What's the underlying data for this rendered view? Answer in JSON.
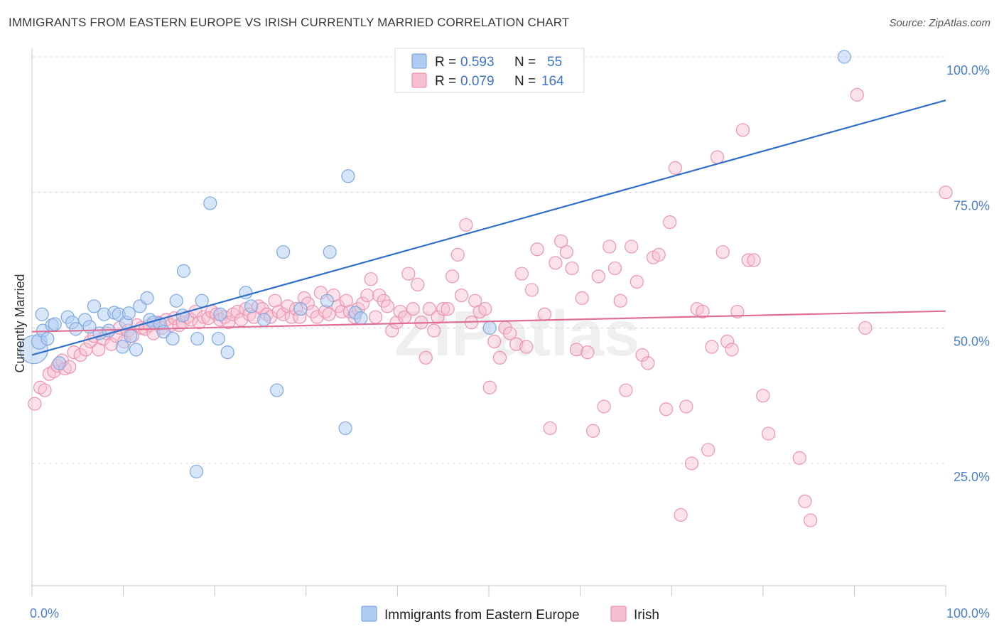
{
  "title": "IMMIGRANTS FROM EASTERN EUROPE VS IRISH CURRENTLY MARRIED CORRELATION CHART",
  "source": "Source: ZipAtlas.com",
  "watermark": "ZIPatlas",
  "colors": {
    "blue_fill": "#aecbf1",
    "blue_stroke": "#7fa8e0",
    "blue_line": "#2f6fcc",
    "pink_fill": "#f6bfd1",
    "pink_stroke": "#ec93b1",
    "pink_line": "#e06f98",
    "tick_text": "#4a7fd0",
    "grid": "#d8d8d8"
  },
  "legend": {
    "rows": [
      {
        "r_label": "R = ",
        "r_value": "0.593",
        "n_label": "N = ",
        "n_value": "55"
      },
      {
        "r_label": "R = ",
        "r_value": "0.079",
        "n_label": "N = ",
        "n_value": "164"
      }
    ]
  },
  "bottom_legend": [
    "Immigrants from Eastern Europe",
    "Irish"
  ],
  "chart_data": {
    "type": "scatter",
    "xlabel": "",
    "ylabel": "Currently Married",
    "xlim": [
      0,
      100
    ],
    "ylim": [
      0,
      105
    ],
    "x_tick_labels": [
      "0.0%",
      "100.0%"
    ],
    "y_ticks": [
      25,
      50,
      75,
      100
    ],
    "y_tick_labels": [
      "25.0%",
      "50.0%",
      "75.0%",
      "100.0%"
    ],
    "grid": true,
    "legend_position": "top-center",
    "series": [
      {
        "name": "Immigrants from Eastern Europe",
        "color": "#aecbf1",
        "trend": {
          "x": [
            0,
            100
          ],
          "y": [
            45.0,
            92.0
          ]
        },
        "points": [
          [
            0.2,
            46.0,
            2.2
          ],
          [
            0.8,
            47.5,
            1.2
          ],
          [
            1.2,
            49.5,
            1.0
          ],
          [
            1.7,
            48.0,
            1.0
          ],
          [
            2.2,
            50.5,
            1.0
          ],
          [
            3.0,
            43.5,
            1.0
          ],
          [
            3.9,
            52.0,
            1.0
          ],
          [
            4.4,
            51.0,
            1.0
          ],
          [
            4.8,
            49.8,
            1.0
          ],
          [
            5.8,
            51.5,
            1.0
          ],
          [
            6.3,
            50.2,
            1.0
          ],
          [
            6.8,
            54.0,
            1.0
          ],
          [
            7.4,
            49.0,
            1.0
          ],
          [
            7.9,
            52.5,
            1.0
          ],
          [
            8.4,
            49.5,
            1.0
          ],
          [
            9.0,
            52.8,
            1.0
          ],
          [
            9.5,
            52.5,
            1.0
          ],
          [
            9.9,
            46.5,
            1.0
          ],
          [
            10.3,
            51.0,
            1.0
          ],
          [
            10.8,
            48.5,
            1.0
          ],
          [
            11.4,
            46.0,
            1.0
          ],
          [
            11.8,
            54.0,
            1.0
          ],
          [
            12.6,
            55.5,
            1.0
          ],
          [
            12.9,
            51.5,
            1.0
          ],
          [
            13.3,
            51.0,
            1.0
          ],
          [
            14.0,
            50.8,
            1.0
          ],
          [
            14.4,
            49.3,
            1.0
          ],
          [
            15.4,
            48.0,
            1.0
          ],
          [
            15.8,
            55.0,
            1.0
          ],
          [
            16.5,
            52.3,
            1.0
          ],
          [
            16.6,
            60.5,
            1.0
          ],
          [
            18.0,
            23.5,
            1.0
          ],
          [
            18.1,
            48.0,
            1.0
          ],
          [
            18.6,
            55.0,
            1.0
          ],
          [
            19.5,
            73.0,
            1.0
          ],
          [
            20.4,
            48.0,
            1.0
          ],
          [
            20.6,
            52.5,
            1.0
          ],
          [
            21.4,
            45.5,
            1.0
          ],
          [
            23.4,
            56.5,
            1.0
          ],
          [
            24.0,
            54.0,
            1.0
          ],
          [
            25.4,
            51.5,
            1.0
          ],
          [
            26.8,
            38.5,
            1.0
          ],
          [
            27.5,
            64.0,
            1.0
          ],
          [
            29.4,
            53.5,
            1.0
          ],
          [
            32.3,
            55.0,
            1.0
          ],
          [
            32.6,
            64.0,
            1.0
          ],
          [
            34.3,
            31.5,
            1.0
          ],
          [
            34.6,
            78.0,
            1.0
          ],
          [
            35.4,
            52.8,
            1.0
          ],
          [
            50.1,
            50.0,
            1.0
          ],
          [
            1.1,
            52.5,
            1.0
          ],
          [
            2.5,
            50.7,
            1.0
          ],
          [
            10.6,
            52.7,
            1.0
          ],
          [
            36.0,
            51.8,
            1.0
          ],
          [
            88.9,
            100.0,
            1.0
          ]
        ]
      },
      {
        "name": "Irish",
        "color": "#f6bfd1",
        "trend": {
          "x": [
            0,
            100
          ],
          "y": [
            49.3,
            53.1
          ]
        },
        "points": [
          [
            0.3,
            36.0
          ],
          [
            0.9,
            39.0
          ],
          [
            1.4,
            38.5
          ],
          [
            1.9,
            41.5
          ],
          [
            2.4,
            42.0
          ],
          [
            2.8,
            43.0
          ],
          [
            3.3,
            44.0
          ],
          [
            3.6,
            42.5
          ],
          [
            4.1,
            42.8
          ],
          [
            4.6,
            45.5
          ],
          [
            5.3,
            45.0
          ],
          [
            5.9,
            46.0
          ],
          [
            6.4,
            47.5
          ],
          [
            6.8,
            48.5
          ],
          [
            7.3,
            46.0
          ],
          [
            7.8,
            48.0
          ],
          [
            8.2,
            49.0
          ],
          [
            8.7,
            47.0
          ],
          [
            9.2,
            48.5
          ],
          [
            9.6,
            50.0
          ],
          [
            10.1,
            47.5
          ],
          [
            10.5,
            49.5
          ],
          [
            11.0,
            48.5
          ],
          [
            11.5,
            50.5
          ],
          [
            12.0,
            50.0
          ],
          [
            12.4,
            49.8
          ],
          [
            12.9,
            50.5
          ],
          [
            13.3,
            49.0
          ],
          [
            13.8,
            51.0
          ],
          [
            14.2,
            50.0
          ],
          [
            14.7,
            51.5
          ],
          [
            15.2,
            50.5
          ],
          [
            15.6,
            51.8
          ],
          [
            16.1,
            50.5
          ],
          [
            16.5,
            51.0
          ],
          [
            17.0,
            52.0
          ],
          [
            17.4,
            51.5
          ],
          [
            17.9,
            53.0
          ],
          [
            18.3,
            51.0
          ],
          [
            18.8,
            52.0
          ],
          [
            19.3,
            51.8
          ],
          [
            19.7,
            53.0
          ],
          [
            20.2,
            52.5
          ],
          [
            20.6,
            51.5
          ],
          [
            21.1,
            52.0
          ],
          [
            21.5,
            51.0
          ],
          [
            22.0,
            52.5
          ],
          [
            22.5,
            53.0
          ],
          [
            22.9,
            51.5
          ],
          [
            23.4,
            53.5
          ],
          [
            23.8,
            52.5
          ],
          [
            24.3,
            52.0
          ],
          [
            24.8,
            54.0
          ],
          [
            25.2,
            53.5
          ],
          [
            25.7,
            52.5
          ],
          [
            26.1,
            52.0
          ],
          [
            26.6,
            55.0
          ],
          [
            27.0,
            53.0
          ],
          [
            27.5,
            52.5
          ],
          [
            28.0,
            54.0
          ],
          [
            28.4,
            52.0
          ],
          [
            28.9,
            53.5
          ],
          [
            29.3,
            52.0
          ],
          [
            29.8,
            55.5
          ],
          [
            30.2,
            54.5
          ],
          [
            30.7,
            53.0
          ],
          [
            31.2,
            52.0
          ],
          [
            31.6,
            56.5
          ],
          [
            32.1,
            53.0
          ],
          [
            32.5,
            52.5
          ],
          [
            33.0,
            56.0
          ],
          [
            33.5,
            54.0
          ],
          [
            33.9,
            53.0
          ],
          [
            34.4,
            55.0
          ],
          [
            34.8,
            53.0
          ],
          [
            35.3,
            52.0
          ],
          [
            35.7,
            53.5
          ],
          [
            36.2,
            54.5
          ],
          [
            36.7,
            56.0
          ],
          [
            37.1,
            59.0
          ],
          [
            37.6,
            52.0
          ],
          [
            38.0,
            56.0
          ],
          [
            38.5,
            55.0
          ],
          [
            38.9,
            54.0
          ],
          [
            39.4,
            49.5
          ],
          [
            39.9,
            51.0
          ],
          [
            40.3,
            53.0
          ],
          [
            40.8,
            52.0
          ],
          [
            41.2,
            60.0
          ],
          [
            41.7,
            53.5
          ],
          [
            42.2,
            58.0
          ],
          [
            42.6,
            51.0
          ],
          [
            43.1,
            44.5
          ],
          [
            43.5,
            53.5
          ],
          [
            44.0,
            49.5
          ],
          [
            44.4,
            52.0
          ],
          [
            45.0,
            53.5
          ],
          [
            45.5,
            53.5
          ],
          [
            46.0,
            59.5
          ],
          [
            46.6,
            63.5
          ],
          [
            47.0,
            56.0
          ],
          [
            47.5,
            69.0
          ],
          [
            48.1,
            51.0
          ],
          [
            48.5,
            55.0
          ],
          [
            49.0,
            53.0
          ],
          [
            49.6,
            53.5
          ],
          [
            50.1,
            39.0
          ],
          [
            50.6,
            47.5
          ],
          [
            51.2,
            44.5
          ],
          [
            51.8,
            50.0
          ],
          [
            52.3,
            49.0
          ],
          [
            53.0,
            47.0
          ],
          [
            53.6,
            60.0
          ],
          [
            54.1,
            46.5
          ],
          [
            54.7,
            57.0
          ],
          [
            55.3,
            64.5
          ],
          [
            56.1,
            52.5
          ],
          [
            56.7,
            31.5
          ],
          [
            57.3,
            62.0
          ],
          [
            57.9,
            66.0
          ],
          [
            58.5,
            64.0
          ],
          [
            59.1,
            61.0
          ],
          [
            59.6,
            46.0
          ],
          [
            60.2,
            55.5
          ],
          [
            60.8,
            45.5
          ],
          [
            61.4,
            31.0
          ],
          [
            62.0,
            59.5
          ],
          [
            62.6,
            35.5
          ],
          [
            63.2,
            65.0
          ],
          [
            63.8,
            61.0
          ],
          [
            64.4,
            55.0
          ],
          [
            65.0,
            38.5
          ],
          [
            65.6,
            65.0
          ],
          [
            66.2,
            58.5
          ],
          [
            66.8,
            45.0
          ],
          [
            67.4,
            43.5
          ],
          [
            68.0,
            63.0
          ],
          [
            68.6,
            63.5
          ],
          [
            69.4,
            35.0
          ],
          [
            69.8,
            69.5
          ],
          [
            70.4,
            79.5
          ],
          [
            71.0,
            15.5
          ],
          [
            71.6,
            35.5
          ],
          [
            72.2,
            25.0
          ],
          [
            72.8,
            53.5
          ],
          [
            73.4,
            53.0
          ],
          [
            74.0,
            27.5
          ],
          [
            74.4,
            46.5
          ],
          [
            75.0,
            81.5
          ],
          [
            75.6,
            64.0
          ],
          [
            76.1,
            47.5
          ],
          [
            76.6,
            46.0
          ],
          [
            77.2,
            53.0
          ],
          [
            77.8,
            86.5
          ],
          [
            78.4,
            62.5
          ],
          [
            79.0,
            62.5
          ],
          [
            80.0,
            37.5
          ],
          [
            80.6,
            30.5
          ],
          [
            84.0,
            26.0
          ],
          [
            84.6,
            18.0
          ],
          [
            85.2,
            14.5
          ],
          [
            90.3,
            93.0
          ],
          [
            91.2,
            50.0
          ],
          [
            100.0,
            75.0
          ]
        ]
      }
    ]
  }
}
